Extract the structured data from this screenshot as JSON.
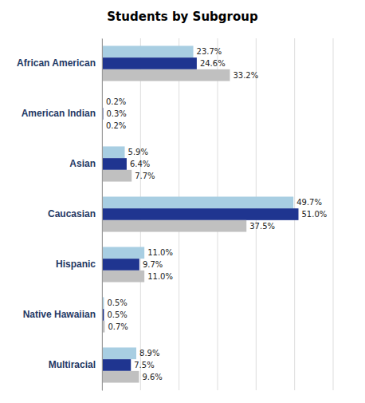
{
  "chart_data": {
    "type": "bar",
    "orientation": "horizontal",
    "title": "Students by Subgroup",
    "categories": [
      "African American",
      "American Indian",
      "Asian",
      "Caucasian",
      "Hispanic",
      "Native Hawaiian",
      "Multiracial"
    ],
    "series": [
      {
        "color": "#A8CEE2",
        "values": [
          23.7,
          0.2,
          5.9,
          49.7,
          11.0,
          0.5,
          8.9
        ],
        "value_labels": [
          "23.7%",
          "0.2%",
          "5.9%",
          "49.7%",
          "11.0%",
          "0.5%",
          "8.9%"
        ]
      },
      {
        "color": "#1F3590",
        "values": [
          24.6,
          0.3,
          6.4,
          51.0,
          9.7,
          0.5,
          7.5
        ],
        "value_labels": [
          "24.6%",
          "0.3%",
          "6.4%",
          "51.0%",
          "9.7%",
          "0.5%",
          "7.5%"
        ]
      },
      {
        "color": "#C0C0C0",
        "values": [
          33.2,
          0.2,
          7.7,
          37.5,
          11.0,
          0.7,
          9.6
        ],
        "value_labels": [
          "33.2%",
          "0.2%",
          "7.7%",
          "37.5%",
          "11.0%",
          "0.7%",
          "9.6%"
        ]
      }
    ],
    "xlim": [
      0,
      60
    ],
    "xticks": [
      0,
      10,
      20,
      30,
      40,
      50,
      60
    ],
    "grid": true,
    "data_labels": true,
    "tick_labels": "y"
  }
}
